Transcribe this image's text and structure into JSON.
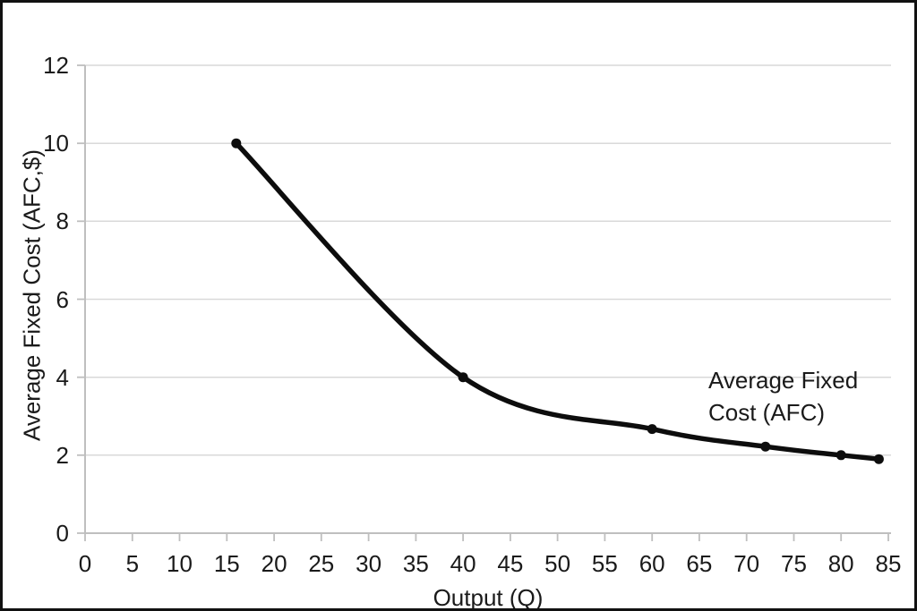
{
  "chart_data": {
    "type": "line",
    "title": "",
    "xlabel": "Output (Q)",
    "ylabel": "Average Fixed Cost (AFC,$)",
    "annotation": {
      "line1": "Average Fixed",
      "line2": "Cost (AFC)"
    },
    "series": [
      {
        "name": "Average Fixed Cost (AFC)",
        "points": [
          {
            "q": 16,
            "afc": 10
          },
          {
            "q": 40,
            "afc": 4
          },
          {
            "q": 60,
            "afc": 2.67
          },
          {
            "q": 72,
            "afc": 2.22
          },
          {
            "q": 80,
            "afc": 2
          },
          {
            "q": 84,
            "afc": 1.9
          }
        ]
      }
    ],
    "x_ticks": [
      0,
      5,
      10,
      15,
      20,
      25,
      30,
      35,
      40,
      45,
      50,
      55,
      60,
      65,
      70,
      75,
      80,
      85
    ],
    "y_ticks": [
      0,
      2,
      4,
      6,
      8,
      10,
      12
    ],
    "xlim": [
      0,
      85
    ],
    "ylim": [
      0,
      12
    ],
    "grid": "horizontal",
    "legend_position": "none",
    "line_style": "smooth",
    "marker_style": "filled-circle",
    "colors": {
      "line": "#0d0d0d",
      "marker": "#0d0d0d",
      "grid": "#d9d9d9",
      "axis": "#bfbfbf",
      "text": "#1a1a1a",
      "background": "#ffffff",
      "border": "#111111"
    }
  }
}
